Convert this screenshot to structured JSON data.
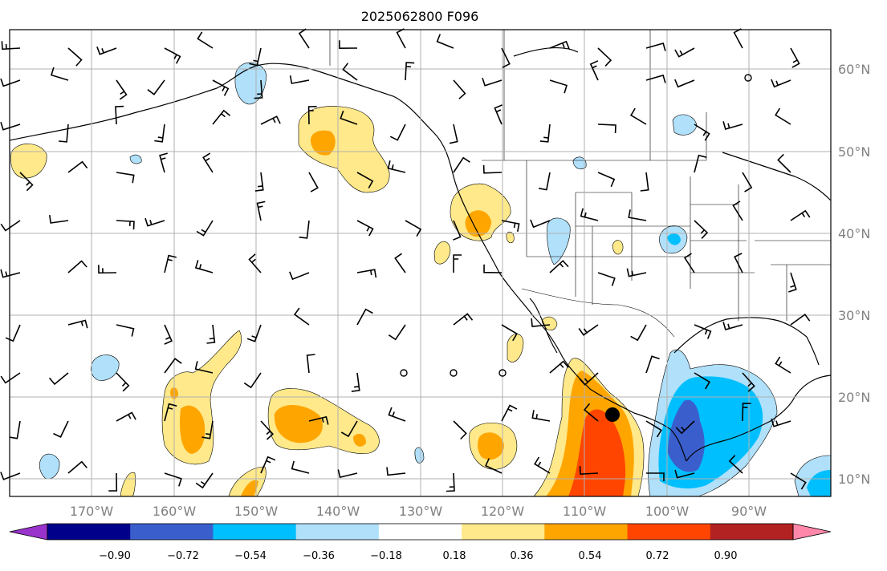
{
  "title": "2025062800 F096",
  "longitude_labels": [
    "170°W",
    "160°W",
    "150°W",
    "140°W",
    "130°W",
    "120°W",
    "110°W",
    "100°W",
    "90°W"
  ],
  "latitude_labels": [
    "60°N",
    "50°N",
    "40°N",
    "30°N",
    "20°N",
    "10°N"
  ],
  "colorbar": {
    "tick_labels": [
      "−0.90",
      "−0.72",
      "−0.54",
      "−0.36",
      "−0.18",
      "0.18",
      "0.36",
      "0.54",
      "0.72",
      "0.90"
    ],
    "colors": [
      "#9933cc",
      "#00008b",
      "#3a5fcd",
      "#00bfff",
      "#b0e0fa",
      "#ffffff",
      "#ffe98a",
      "#ffa500",
      "#ff4500",
      "#b22222",
      "#ff88aa"
    ]
  },
  "colors": {
    "land_outline": "#000000",
    "gridline": "#b0b0b0",
    "label_gray": "#808080"
  }
}
